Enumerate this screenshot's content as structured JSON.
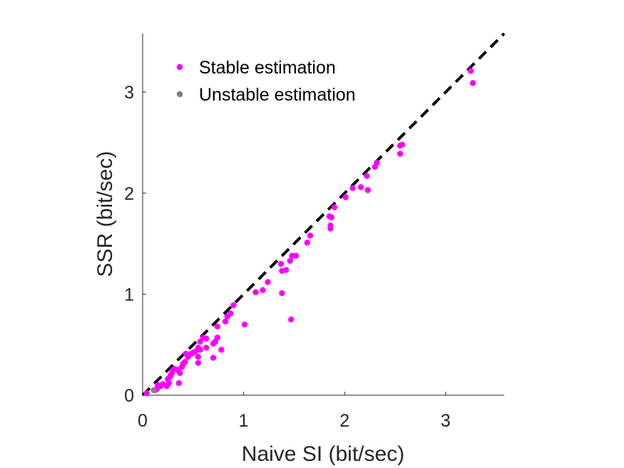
{
  "chart_data": {
    "type": "scatter",
    "title": "",
    "xlabel": "Naive SI (bit/sec)",
    "ylabel": "SSR (bit/sec)",
    "xlim": [
      0,
      3.58
    ],
    "ylim": [
      0,
      3.58
    ],
    "xticks": [
      "0",
      "1",
      "2",
      "3"
    ],
    "yticks": [
      "0",
      "1",
      "2",
      "3"
    ],
    "grid": false,
    "legend_position": "top-left",
    "reference_line": {
      "style": "dashed",
      "color": "#000000",
      "from": [
        0,
        0
      ],
      "to": [
        3.58,
        3.58
      ]
    },
    "series": [
      {
        "name": "Stable estimation",
        "color": "#ff00ff",
        "points": [
          [
            3.25,
            3.21
          ],
          [
            3.27,
            3.09
          ],
          [
            2.57,
            2.48
          ],
          [
            2.55,
            2.47
          ],
          [
            2.55,
            2.39
          ],
          [
            2.32,
            2.3
          ],
          [
            2.3,
            2.26
          ],
          [
            2.22,
            2.17
          ],
          [
            2.23,
            2.03
          ],
          [
            2.16,
            2.06
          ],
          [
            2.08,
            2.05
          ],
          [
            2.01,
            1.96
          ],
          [
            1.9,
            1.86
          ],
          [
            1.85,
            1.77
          ],
          [
            1.87,
            1.76
          ],
          [
            1.86,
            1.68
          ],
          [
            1.86,
            1.65
          ],
          [
            1.66,
            1.58
          ],
          [
            1.63,
            1.51
          ],
          [
            1.52,
            1.38
          ],
          [
            1.48,
            1.38
          ],
          [
            1.46,
            1.33
          ],
          [
            1.42,
            1.24
          ],
          [
            1.37,
            1.3
          ],
          [
            1.38,
            1.23
          ],
          [
            1.38,
            1.01
          ],
          [
            1.47,
            0.75
          ],
          [
            1.24,
            1.12
          ],
          [
            1.19,
            1.04
          ],
          [
            1.12,
            1.02
          ],
          [
            1.01,
            0.7
          ],
          [
            0.9,
            0.89
          ],
          [
            0.87,
            0.81
          ],
          [
            0.84,
            0.78
          ],
          [
            0.82,
            0.73
          ],
          [
            0.78,
            0.45
          ],
          [
            0.74,
            0.57
          ],
          [
            0.74,
            0.68
          ],
          [
            0.72,
            0.53
          ],
          [
            0.7,
            0.51
          ],
          [
            0.7,
            0.37
          ],
          [
            0.63,
            0.56
          ],
          [
            0.63,
            0.47
          ],
          [
            0.6,
            0.57
          ],
          [
            0.57,
            0.53
          ],
          [
            0.57,
            0.45
          ],
          [
            0.55,
            0.47
          ],
          [
            0.55,
            0.38
          ],
          [
            0.55,
            0.32
          ],
          [
            0.52,
            0.43
          ],
          [
            0.5,
            0.42
          ],
          [
            0.48,
            0.41
          ],
          [
            0.45,
            0.38
          ],
          [
            0.43,
            0.41
          ],
          [
            0.42,
            0.33
          ],
          [
            0.4,
            0.31
          ],
          [
            0.39,
            0.28
          ],
          [
            0.37,
            0.22
          ],
          [
            0.35,
            0.25
          ],
          [
            0.36,
            0.12
          ],
          [
            0.32,
            0.26
          ],
          [
            0.3,
            0.25
          ],
          [
            0.29,
            0.22
          ],
          [
            0.28,
            0.2
          ],
          [
            0.27,
            0.18
          ],
          [
            0.26,
            0.12
          ],
          [
            0.24,
            0.09
          ],
          [
            0.25,
            0.16
          ],
          [
            0.2,
            0.11
          ],
          [
            0.18,
            0.09
          ],
          [
            0.15,
            0.1
          ],
          [
            0.14,
            0.06
          ],
          [
            0.12,
            0.05
          ],
          [
            0.04,
            0.02
          ]
        ]
      },
      {
        "name": "Unstable estimation",
        "color": "#808080",
        "points": [
          [
            0.11,
            0.05
          ]
        ]
      }
    ]
  }
}
